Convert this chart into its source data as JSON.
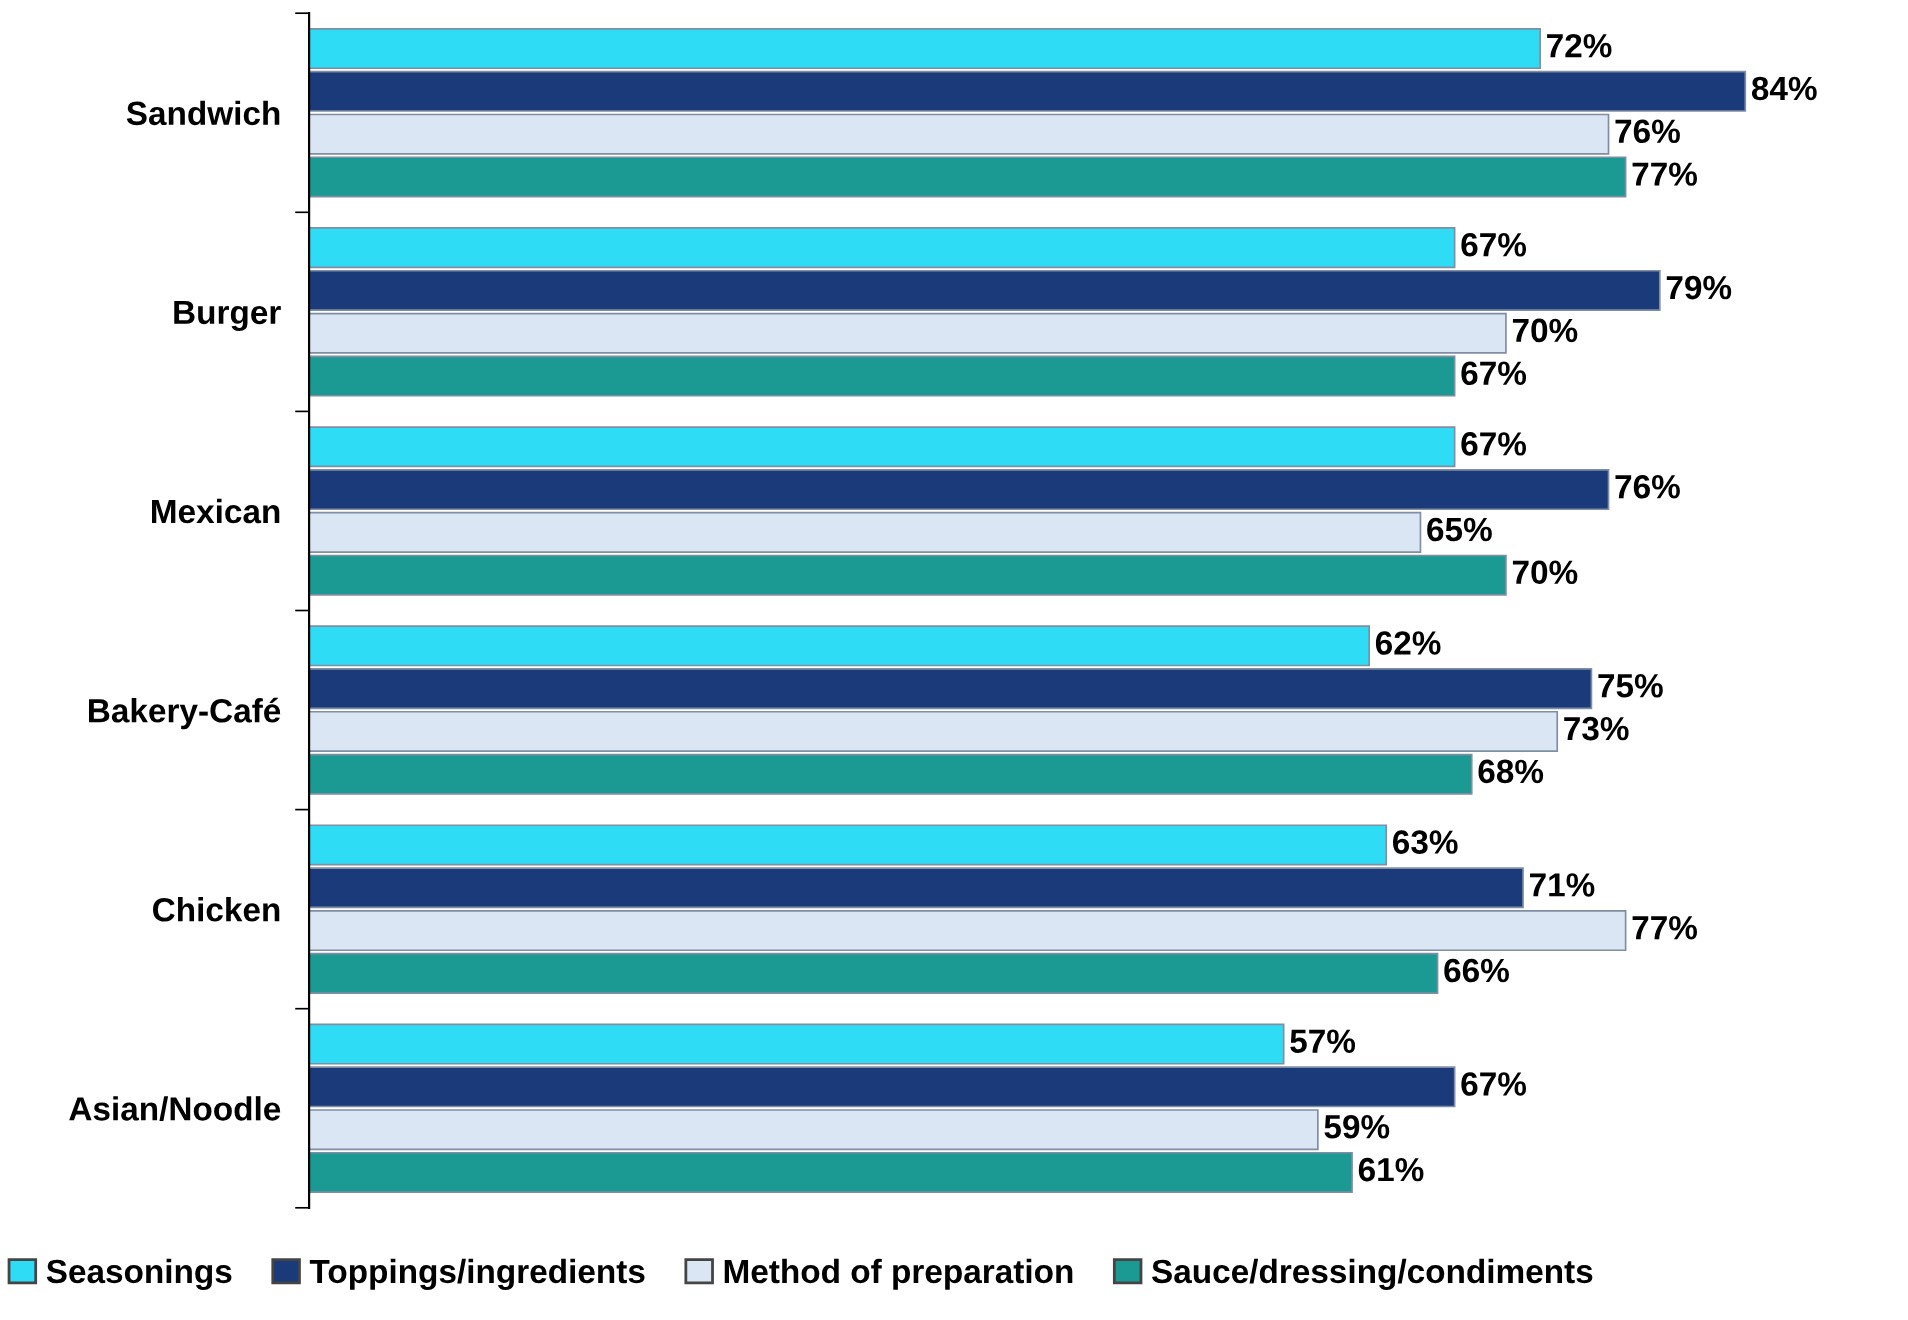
{
  "chart_data": {
    "type": "bar",
    "orientation": "horizontal",
    "categories": [
      "Sandwich",
      "Burger",
      "Mexican",
      "Bakery-Café",
      "Chicken",
      "Asian/Noodle"
    ],
    "tick_labels": "y",
    "grid": false,
    "legend": "bottom",
    "series": [
      {
        "name": "Seasonings",
        "color": "#2fdcf5",
        "values": [
          72,
          67,
          67,
          62,
          63,
          57
        ],
        "value_labels": [
          "72%",
          "67%",
          "67%",
          "62%",
          "63%",
          "57%"
        ]
      },
      {
        "name": "Toppings/ingredients",
        "color": "#1b3a7a",
        "values": [
          84,
          79,
          76,
          75,
          71,
          67
        ],
        "value_labels": [
          "84%",
          "79%",
          "76%",
          "75%",
          "71%",
          "67%"
        ]
      },
      {
        "name": "Method of preparation",
        "color": "#dbe6f4",
        "values": [
          76,
          70,
          65,
          73,
          77,
          59
        ],
        "value_labels": [
          "76%",
          "70%",
          "65%",
          "73%",
          "77%",
          "59%"
        ]
      },
      {
        "name": "Sauce/dressing/condiments",
        "color": "#1a9a92",
        "values": [
          77,
          67,
          70,
          68,
          66,
          61
        ],
        "value_labels": [
          "77%",
          "67%",
          "70%",
          "68%",
          "66%",
          "61%"
        ]
      }
    ]
  }
}
